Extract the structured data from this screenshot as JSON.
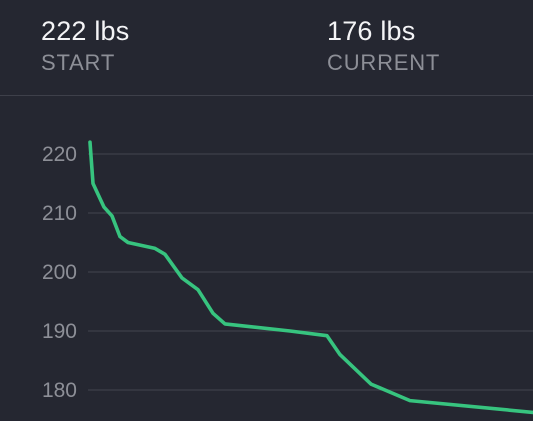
{
  "summary": {
    "start": {
      "value": "222 lbs",
      "label": "START"
    },
    "current": {
      "value": "176 lbs",
      "label": "CURRENT"
    }
  },
  "chart_data": {
    "type": "line",
    "ylabel": "",
    "xlabel": "",
    "yticks": [
      220,
      210,
      200,
      190,
      180
    ],
    "ylim": [
      176,
      223
    ],
    "grid": true,
    "line_color": "#37c47f",
    "series": [
      {
        "values": [
          222,
          215,
          211,
          209.5,
          206,
          205,
          204,
          203,
          199,
          197,
          193,
          191.2,
          190,
          189.2,
          186,
          181,
          178.2,
          176.2
        ]
      }
    ]
  },
  "colors": {
    "background": "#252731",
    "grid": "#3e404a",
    "label": "#8d8f97",
    "text": "#f4f4f6",
    "accent": "#37c47f"
  }
}
